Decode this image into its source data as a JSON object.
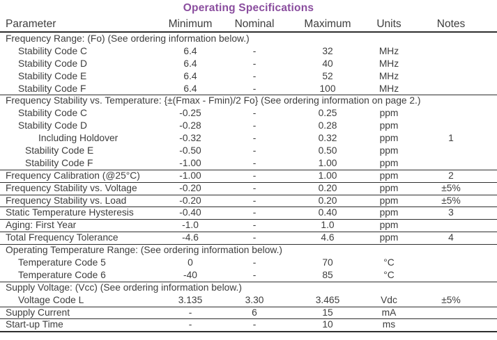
{
  "title": "Operating Specifications",
  "colors": {
    "accent": "#8a4d9e",
    "text": "#3d3d3d",
    "rule": "#2e2e2e"
  },
  "table": {
    "columns": [
      "Parameter",
      "Minimum",
      "Nominal",
      "Maximum",
      "Units",
      "Notes"
    ],
    "rows": [
      {
        "type": "section",
        "label": "Frequency Range: (Fo) (See ordering information below.)",
        "rule_above": false
      },
      {
        "type": "data",
        "label": "Stability Code C",
        "indent": 1,
        "min": "6.4",
        "nom": "-",
        "max": "32",
        "units": "MHz",
        "notes": "",
        "rule_above": false
      },
      {
        "type": "data",
        "label": "Stability Code D",
        "indent": 1,
        "min": "6.4",
        "nom": "-",
        "max": "40",
        "units": "MHz",
        "notes": "",
        "rule_above": false
      },
      {
        "type": "data",
        "label": "Stability Code E",
        "indent": 1,
        "min": "6.4",
        "nom": "-",
        "max": "52",
        "units": "MHz",
        "notes": "",
        "rule_above": false
      },
      {
        "type": "data",
        "label": "Stability Code F",
        "indent": 1,
        "min": "6.4",
        "nom": "-",
        "max": "100",
        "units": "MHz",
        "notes": "",
        "rule_above": false
      },
      {
        "type": "section",
        "label": "Frequency Stability vs. Temperature: {±(Fmax - Fmin)/2 Fo} (See ordering information on page 2.)",
        "rule_above": true
      },
      {
        "type": "data",
        "label": "Stability Code C",
        "indent": 1,
        "min": "-0.25",
        "nom": "-",
        "max": "0.25",
        "units": "ppm",
        "notes": "",
        "rule_above": false
      },
      {
        "type": "data",
        "label": "Stability Code D",
        "indent": 1,
        "min": "-0.28",
        "nom": "-",
        "max": "0.28",
        "units": "ppm",
        "notes": "",
        "rule_above": false
      },
      {
        "type": "data",
        "label": "Including Holdover",
        "indent": 3,
        "min": "-0.32",
        "nom": "-",
        "max": "0.32",
        "units": "ppm",
        "notes": "1",
        "rule_above": false
      },
      {
        "type": "data",
        "label": "Stability Code E",
        "indent": 2,
        "min": "-0.50",
        "nom": "-",
        "max": "0.50",
        "units": "ppm",
        "notes": "",
        "rule_above": false
      },
      {
        "type": "data",
        "label": "Stability Code F",
        "indent": 2,
        "min": "-1.00",
        "nom": "-",
        "max": "1.00",
        "units": "ppm",
        "notes": "",
        "rule_above": false
      },
      {
        "type": "data",
        "label": "Frequency Calibration (@25°C)",
        "indent": 0,
        "min": "-1.00",
        "nom": "-",
        "max": "1.00",
        "units": "ppm",
        "notes": "2",
        "rule_above": true
      },
      {
        "type": "data",
        "label": "Frequency Stability vs. Voltage",
        "indent": 0,
        "min": "-0.20",
        "nom": "-",
        "max": "0.20",
        "units": "ppm",
        "notes": "±5%",
        "rule_above": true
      },
      {
        "type": "data",
        "label": "Frequency Stability vs. Load",
        "indent": 0,
        "min": "-0.20",
        "nom": "-",
        "max": "0.20",
        "units": "ppm",
        "notes": "±5%",
        "rule_above": true
      },
      {
        "type": "data",
        "label": "Static Temperature Hysteresis",
        "indent": 0,
        "min": "-0.40",
        "nom": "-",
        "max": "0.40",
        "units": "ppm",
        "notes": "3",
        "rule_above": true
      },
      {
        "type": "data",
        "label": "Aging: First Year",
        "indent": 0,
        "min": "-1.0",
        "nom": "-",
        "max": "1.0",
        "units": "ppm",
        "notes": "",
        "rule_above": true
      },
      {
        "type": "data",
        "label": "Total Frequency Tolerance",
        "indent": 0,
        "min": "-4.6",
        "nom": "-",
        "max": "4.6",
        "units": "ppm",
        "notes": "4",
        "rule_above": true
      },
      {
        "type": "section",
        "label": "Operating Temperature Range: (See ordering information below.)",
        "rule_above": true
      },
      {
        "type": "data",
        "label": "Temperature Code 5",
        "indent": 1,
        "min": "0",
        "nom": "-",
        "max": "70",
        "units": "°C",
        "notes": "",
        "rule_above": false
      },
      {
        "type": "data",
        "label": "Temperature Code 6",
        "indent": 1,
        "min": "-40",
        "nom": "-",
        "max": "85",
        "units": "°C",
        "notes": "",
        "rule_above": false
      },
      {
        "type": "section",
        "label": "Supply Voltage: (Vcc) (See ordering information below.)",
        "rule_above": true
      },
      {
        "type": "data",
        "label": "Voltage Code L",
        "indent": 1,
        "min": "3.135",
        "nom": "3.30",
        "max": "3.465",
        "units": "Vdc",
        "notes": "±5%",
        "rule_above": false
      },
      {
        "type": "data",
        "label": "Supply Current",
        "indent": 0,
        "min": "-",
        "nom": "6",
        "max": "15",
        "units": "mA",
        "notes": "",
        "rule_above": true
      },
      {
        "type": "data",
        "label": "Start-up Time",
        "indent": 0,
        "min": "-",
        "nom": "-",
        "max": "10",
        "units": "ms",
        "notes": "",
        "rule_above": true
      }
    ]
  }
}
